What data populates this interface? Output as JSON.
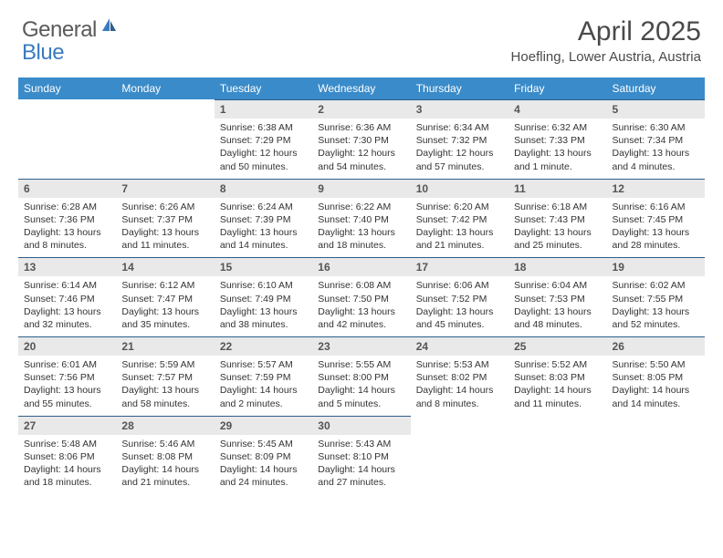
{
  "logo": {
    "text1": "General",
    "text2": "Blue",
    "color_general": "#5a5a5a",
    "color_blue": "#3a7bbf",
    "icon_color": "#3a7bbf"
  },
  "title": "April 2025",
  "location": "Hoefling, Lower Austria, Austria",
  "colors": {
    "header_bg": "#3a8bc9",
    "header_text": "#ffffff",
    "daynum_bg": "#e9e9e9",
    "daynum_border": "#2e5e8a",
    "text": "#333333"
  },
  "fonts": {
    "title_size": 30,
    "location_size": 15,
    "header_size": 12,
    "daynum_size": 12,
    "content_size": 10.5
  },
  "day_headers": [
    "Sunday",
    "Monday",
    "Tuesday",
    "Wednesday",
    "Thursday",
    "Friday",
    "Saturday"
  ],
  "weeks": [
    [
      null,
      null,
      {
        "n": "1",
        "sunrise": "Sunrise: 6:38 AM",
        "sunset": "Sunset: 7:29 PM",
        "daylight": "Daylight: 12 hours and 50 minutes."
      },
      {
        "n": "2",
        "sunrise": "Sunrise: 6:36 AM",
        "sunset": "Sunset: 7:30 PM",
        "daylight": "Daylight: 12 hours and 54 minutes."
      },
      {
        "n": "3",
        "sunrise": "Sunrise: 6:34 AM",
        "sunset": "Sunset: 7:32 PM",
        "daylight": "Daylight: 12 hours and 57 minutes."
      },
      {
        "n": "4",
        "sunrise": "Sunrise: 6:32 AM",
        "sunset": "Sunset: 7:33 PM",
        "daylight": "Daylight: 13 hours and 1 minute."
      },
      {
        "n": "5",
        "sunrise": "Sunrise: 6:30 AM",
        "sunset": "Sunset: 7:34 PM",
        "daylight": "Daylight: 13 hours and 4 minutes."
      }
    ],
    [
      {
        "n": "6",
        "sunrise": "Sunrise: 6:28 AM",
        "sunset": "Sunset: 7:36 PM",
        "daylight": "Daylight: 13 hours and 8 minutes."
      },
      {
        "n": "7",
        "sunrise": "Sunrise: 6:26 AM",
        "sunset": "Sunset: 7:37 PM",
        "daylight": "Daylight: 13 hours and 11 minutes."
      },
      {
        "n": "8",
        "sunrise": "Sunrise: 6:24 AM",
        "sunset": "Sunset: 7:39 PM",
        "daylight": "Daylight: 13 hours and 14 minutes."
      },
      {
        "n": "9",
        "sunrise": "Sunrise: 6:22 AM",
        "sunset": "Sunset: 7:40 PM",
        "daylight": "Daylight: 13 hours and 18 minutes."
      },
      {
        "n": "10",
        "sunrise": "Sunrise: 6:20 AM",
        "sunset": "Sunset: 7:42 PM",
        "daylight": "Daylight: 13 hours and 21 minutes."
      },
      {
        "n": "11",
        "sunrise": "Sunrise: 6:18 AM",
        "sunset": "Sunset: 7:43 PM",
        "daylight": "Daylight: 13 hours and 25 minutes."
      },
      {
        "n": "12",
        "sunrise": "Sunrise: 6:16 AM",
        "sunset": "Sunset: 7:45 PM",
        "daylight": "Daylight: 13 hours and 28 minutes."
      }
    ],
    [
      {
        "n": "13",
        "sunrise": "Sunrise: 6:14 AM",
        "sunset": "Sunset: 7:46 PM",
        "daylight": "Daylight: 13 hours and 32 minutes."
      },
      {
        "n": "14",
        "sunrise": "Sunrise: 6:12 AM",
        "sunset": "Sunset: 7:47 PM",
        "daylight": "Daylight: 13 hours and 35 minutes."
      },
      {
        "n": "15",
        "sunrise": "Sunrise: 6:10 AM",
        "sunset": "Sunset: 7:49 PM",
        "daylight": "Daylight: 13 hours and 38 minutes."
      },
      {
        "n": "16",
        "sunrise": "Sunrise: 6:08 AM",
        "sunset": "Sunset: 7:50 PM",
        "daylight": "Daylight: 13 hours and 42 minutes."
      },
      {
        "n": "17",
        "sunrise": "Sunrise: 6:06 AM",
        "sunset": "Sunset: 7:52 PM",
        "daylight": "Daylight: 13 hours and 45 minutes."
      },
      {
        "n": "18",
        "sunrise": "Sunrise: 6:04 AM",
        "sunset": "Sunset: 7:53 PM",
        "daylight": "Daylight: 13 hours and 48 minutes."
      },
      {
        "n": "19",
        "sunrise": "Sunrise: 6:02 AM",
        "sunset": "Sunset: 7:55 PM",
        "daylight": "Daylight: 13 hours and 52 minutes."
      }
    ],
    [
      {
        "n": "20",
        "sunrise": "Sunrise: 6:01 AM",
        "sunset": "Sunset: 7:56 PM",
        "daylight": "Daylight: 13 hours and 55 minutes."
      },
      {
        "n": "21",
        "sunrise": "Sunrise: 5:59 AM",
        "sunset": "Sunset: 7:57 PM",
        "daylight": "Daylight: 13 hours and 58 minutes."
      },
      {
        "n": "22",
        "sunrise": "Sunrise: 5:57 AM",
        "sunset": "Sunset: 7:59 PM",
        "daylight": "Daylight: 14 hours and 2 minutes."
      },
      {
        "n": "23",
        "sunrise": "Sunrise: 5:55 AM",
        "sunset": "Sunset: 8:00 PM",
        "daylight": "Daylight: 14 hours and 5 minutes."
      },
      {
        "n": "24",
        "sunrise": "Sunrise: 5:53 AM",
        "sunset": "Sunset: 8:02 PM",
        "daylight": "Daylight: 14 hours and 8 minutes."
      },
      {
        "n": "25",
        "sunrise": "Sunrise: 5:52 AM",
        "sunset": "Sunset: 8:03 PM",
        "daylight": "Daylight: 14 hours and 11 minutes."
      },
      {
        "n": "26",
        "sunrise": "Sunrise: 5:50 AM",
        "sunset": "Sunset: 8:05 PM",
        "daylight": "Daylight: 14 hours and 14 minutes."
      }
    ],
    [
      {
        "n": "27",
        "sunrise": "Sunrise: 5:48 AM",
        "sunset": "Sunset: 8:06 PM",
        "daylight": "Daylight: 14 hours and 18 minutes."
      },
      {
        "n": "28",
        "sunrise": "Sunrise: 5:46 AM",
        "sunset": "Sunset: 8:08 PM",
        "daylight": "Daylight: 14 hours and 21 minutes."
      },
      {
        "n": "29",
        "sunrise": "Sunrise: 5:45 AM",
        "sunset": "Sunset: 8:09 PM",
        "daylight": "Daylight: 14 hours and 24 minutes."
      },
      {
        "n": "30",
        "sunrise": "Sunrise: 5:43 AM",
        "sunset": "Sunset: 8:10 PM",
        "daylight": "Daylight: 14 hours and 27 minutes."
      },
      null,
      null,
      null
    ]
  ]
}
